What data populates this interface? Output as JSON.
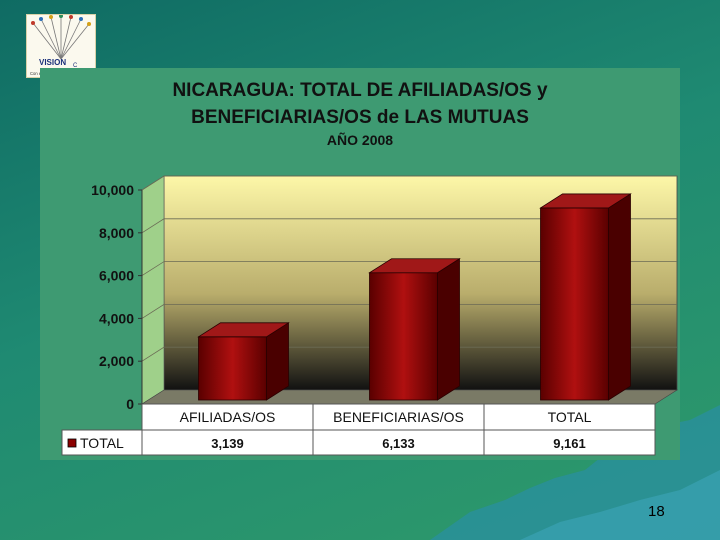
{
  "logo": {
    "text": "VISION",
    "tagline": "Con excelencia al éxito",
    "badge": "C"
  },
  "chart_data": {
    "type": "bar",
    "title": "NICARAGUA: TOTAL DE AFILIADAS/OS y BENEFICIARIAS/OS de LAS MUTUAS",
    "title_line1": "NICARAGUA: TOTAL DE AFILIADAS/OS y",
    "title_line2": "BENEFICIARIAS/OS de LAS MUTUAS",
    "subtitle": "AÑO 2008",
    "categories": [
      "AFILIADAS/OS",
      "BENEFICIARIAS/OS",
      "TOTAL"
    ],
    "series": [
      {
        "name": "TOTAL",
        "values": [
          3139,
          6133,
          9161
        ],
        "labels": [
          "3,139",
          "6,133",
          "9,161"
        ],
        "color": "#8b0000"
      }
    ],
    "yticks": [
      "0",
      "2,000",
      "4,000",
      "6,000",
      "8,000",
      "10,000"
    ],
    "ylim": [
      0,
      10000
    ],
    "grid": true,
    "legend": "data-table",
    "colors": {
      "wall_top": "#fdf7a8",
      "wall_bottom": "#111111",
      "bar": "#8b0000"
    }
  },
  "page_number": "18"
}
